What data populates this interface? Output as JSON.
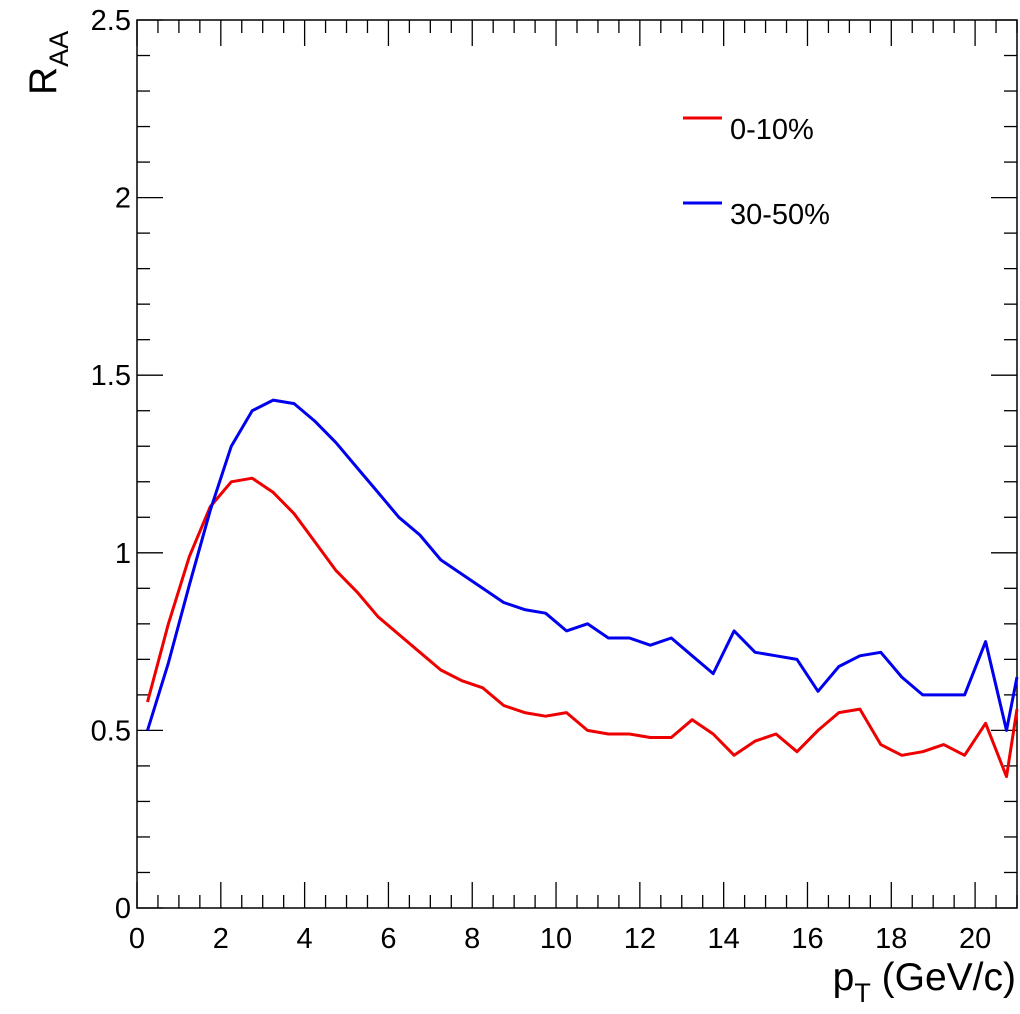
{
  "chart_data": {
    "type": "line",
    "xlabel": "p",
    "xlabel_sub": "T",
    "xlabel_unit": " (GeV/c)",
    "ylabel": "R",
    "ylabel_sub": "AA",
    "xlim": [
      0,
      21
    ],
    "ylim": [
      0,
      2.5
    ],
    "x_ticks": [
      0,
      2,
      4,
      6,
      8,
      10,
      12,
      14,
      16,
      18,
      20
    ],
    "y_ticks": [
      0,
      0.5,
      1,
      1.5,
      2,
      2.5
    ],
    "y_tick_labels": [
      "0",
      "0.5",
      "1",
      "1.5",
      "2",
      "2.5"
    ],
    "grid": false,
    "legend_position": "top-right",
    "x": [
      0.25,
      0.75,
      1.25,
      1.75,
      2.25,
      2.75,
      3.25,
      3.75,
      4.25,
      4.75,
      5.25,
      5.75,
      6.25,
      6.75,
      7.25,
      7.75,
      8.25,
      8.75,
      9.25,
      9.75,
      10.25,
      10.75,
      11.25,
      11.75,
      12.25,
      12.75,
      13.25,
      13.75,
      14.25,
      14.75,
      15.25,
      15.75,
      16.25,
      16.75,
      17.25,
      17.75,
      18.25,
      18.75,
      19.25,
      19.75,
      20.25,
      20.75,
      21.0
    ],
    "series": [
      {
        "name": "0-10%",
        "color": "#ee0000",
        "values": [
          0.58,
          0.8,
          0.99,
          1.13,
          1.2,
          1.21,
          1.17,
          1.11,
          1.03,
          0.95,
          0.89,
          0.82,
          0.77,
          0.72,
          0.67,
          0.64,
          0.62,
          0.57,
          0.55,
          0.54,
          0.55,
          0.5,
          0.49,
          0.49,
          0.48,
          0.48,
          0.53,
          0.49,
          0.43,
          0.47,
          0.49,
          0.44,
          0.5,
          0.55,
          0.56,
          0.46,
          0.43,
          0.44,
          0.46,
          0.43,
          0.52,
          0.37,
          0.56
        ]
      },
      {
        "name": "30-50%",
        "color": "#0000ee",
        "values": [
          0.5,
          0.69,
          0.91,
          1.12,
          1.3,
          1.4,
          1.43,
          1.42,
          1.37,
          1.31,
          1.24,
          1.17,
          1.1,
          1.05,
          0.98,
          0.94,
          0.9,
          0.86,
          0.84,
          0.83,
          0.78,
          0.8,
          0.76,
          0.76,
          0.74,
          0.76,
          0.71,
          0.66,
          0.78,
          0.72,
          0.71,
          0.7,
          0.61,
          0.68,
          0.71,
          0.72,
          0.65,
          0.6,
          0.6,
          0.6,
          0.75,
          0.5,
          0.65
        ]
      }
    ]
  }
}
